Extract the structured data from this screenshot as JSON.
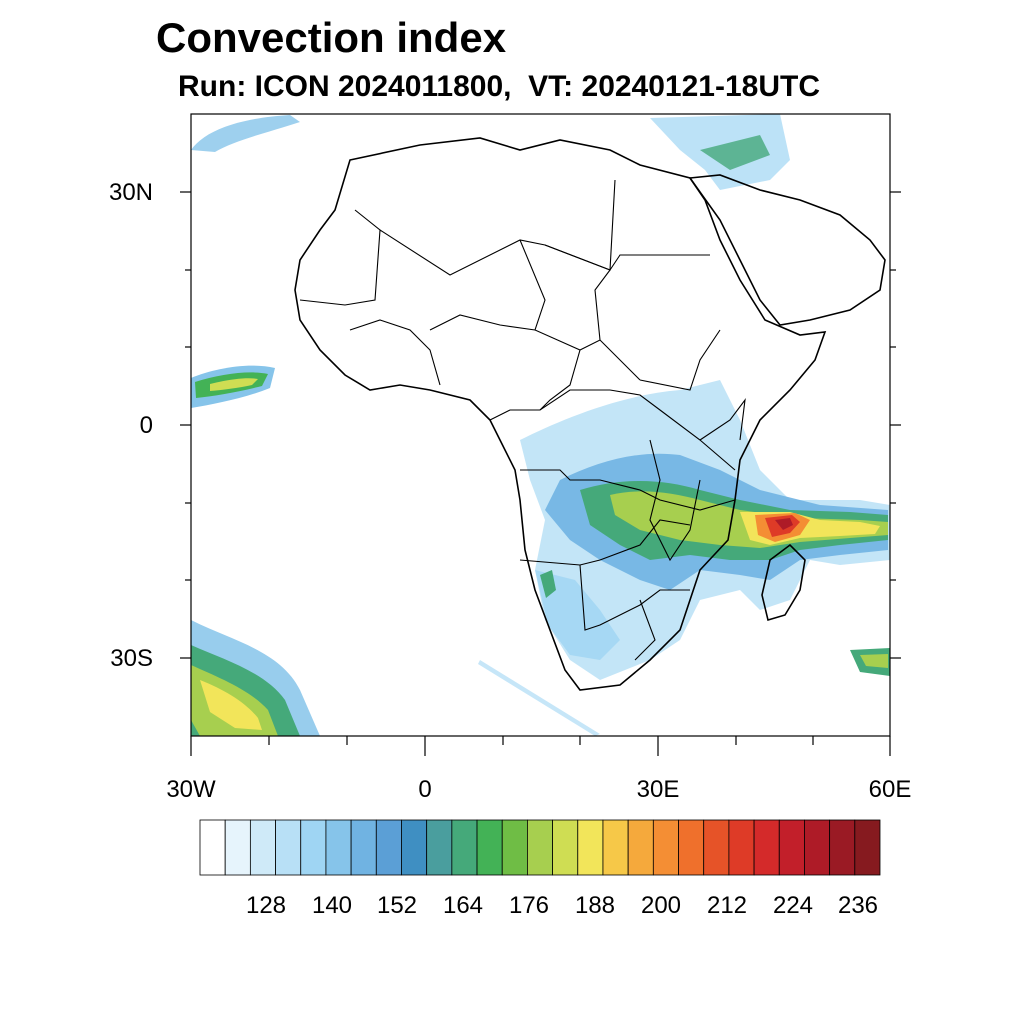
{
  "title": "Convection index",
  "subtitle": "Run: ICON 2024011800,  VT: 20240121-18UTC",
  "lat_labels": [
    "30N",
    "0",
    "30S"
  ],
  "lon_labels": [
    "30W",
    "0",
    "30E",
    "60E"
  ],
  "colorbar": {
    "colors": [
      "#ffffff",
      "#e6f4fc",
      "#cfeaf8",
      "#b8e0f6",
      "#9fd5f3",
      "#86c4ea",
      "#70b3e2",
      "#5b9fd6",
      "#3f8fc2",
      "#4a9e9e",
      "#45a97a",
      "#43b256",
      "#6fbd45",
      "#a7cf4f",
      "#cfdd53",
      "#f2e55a",
      "#f6c848",
      "#f5a93c",
      "#f48e34",
      "#ef702c",
      "#e65328",
      "#de3b27",
      "#d42a2a",
      "#c21f2a",
      "#ae1b27",
      "#9a1a24",
      "#861a1f"
    ],
    "tick_labels": [
      "128",
      "140",
      "152",
      "164",
      "176",
      "188",
      "200",
      "212",
      "224",
      "236"
    ]
  }
}
